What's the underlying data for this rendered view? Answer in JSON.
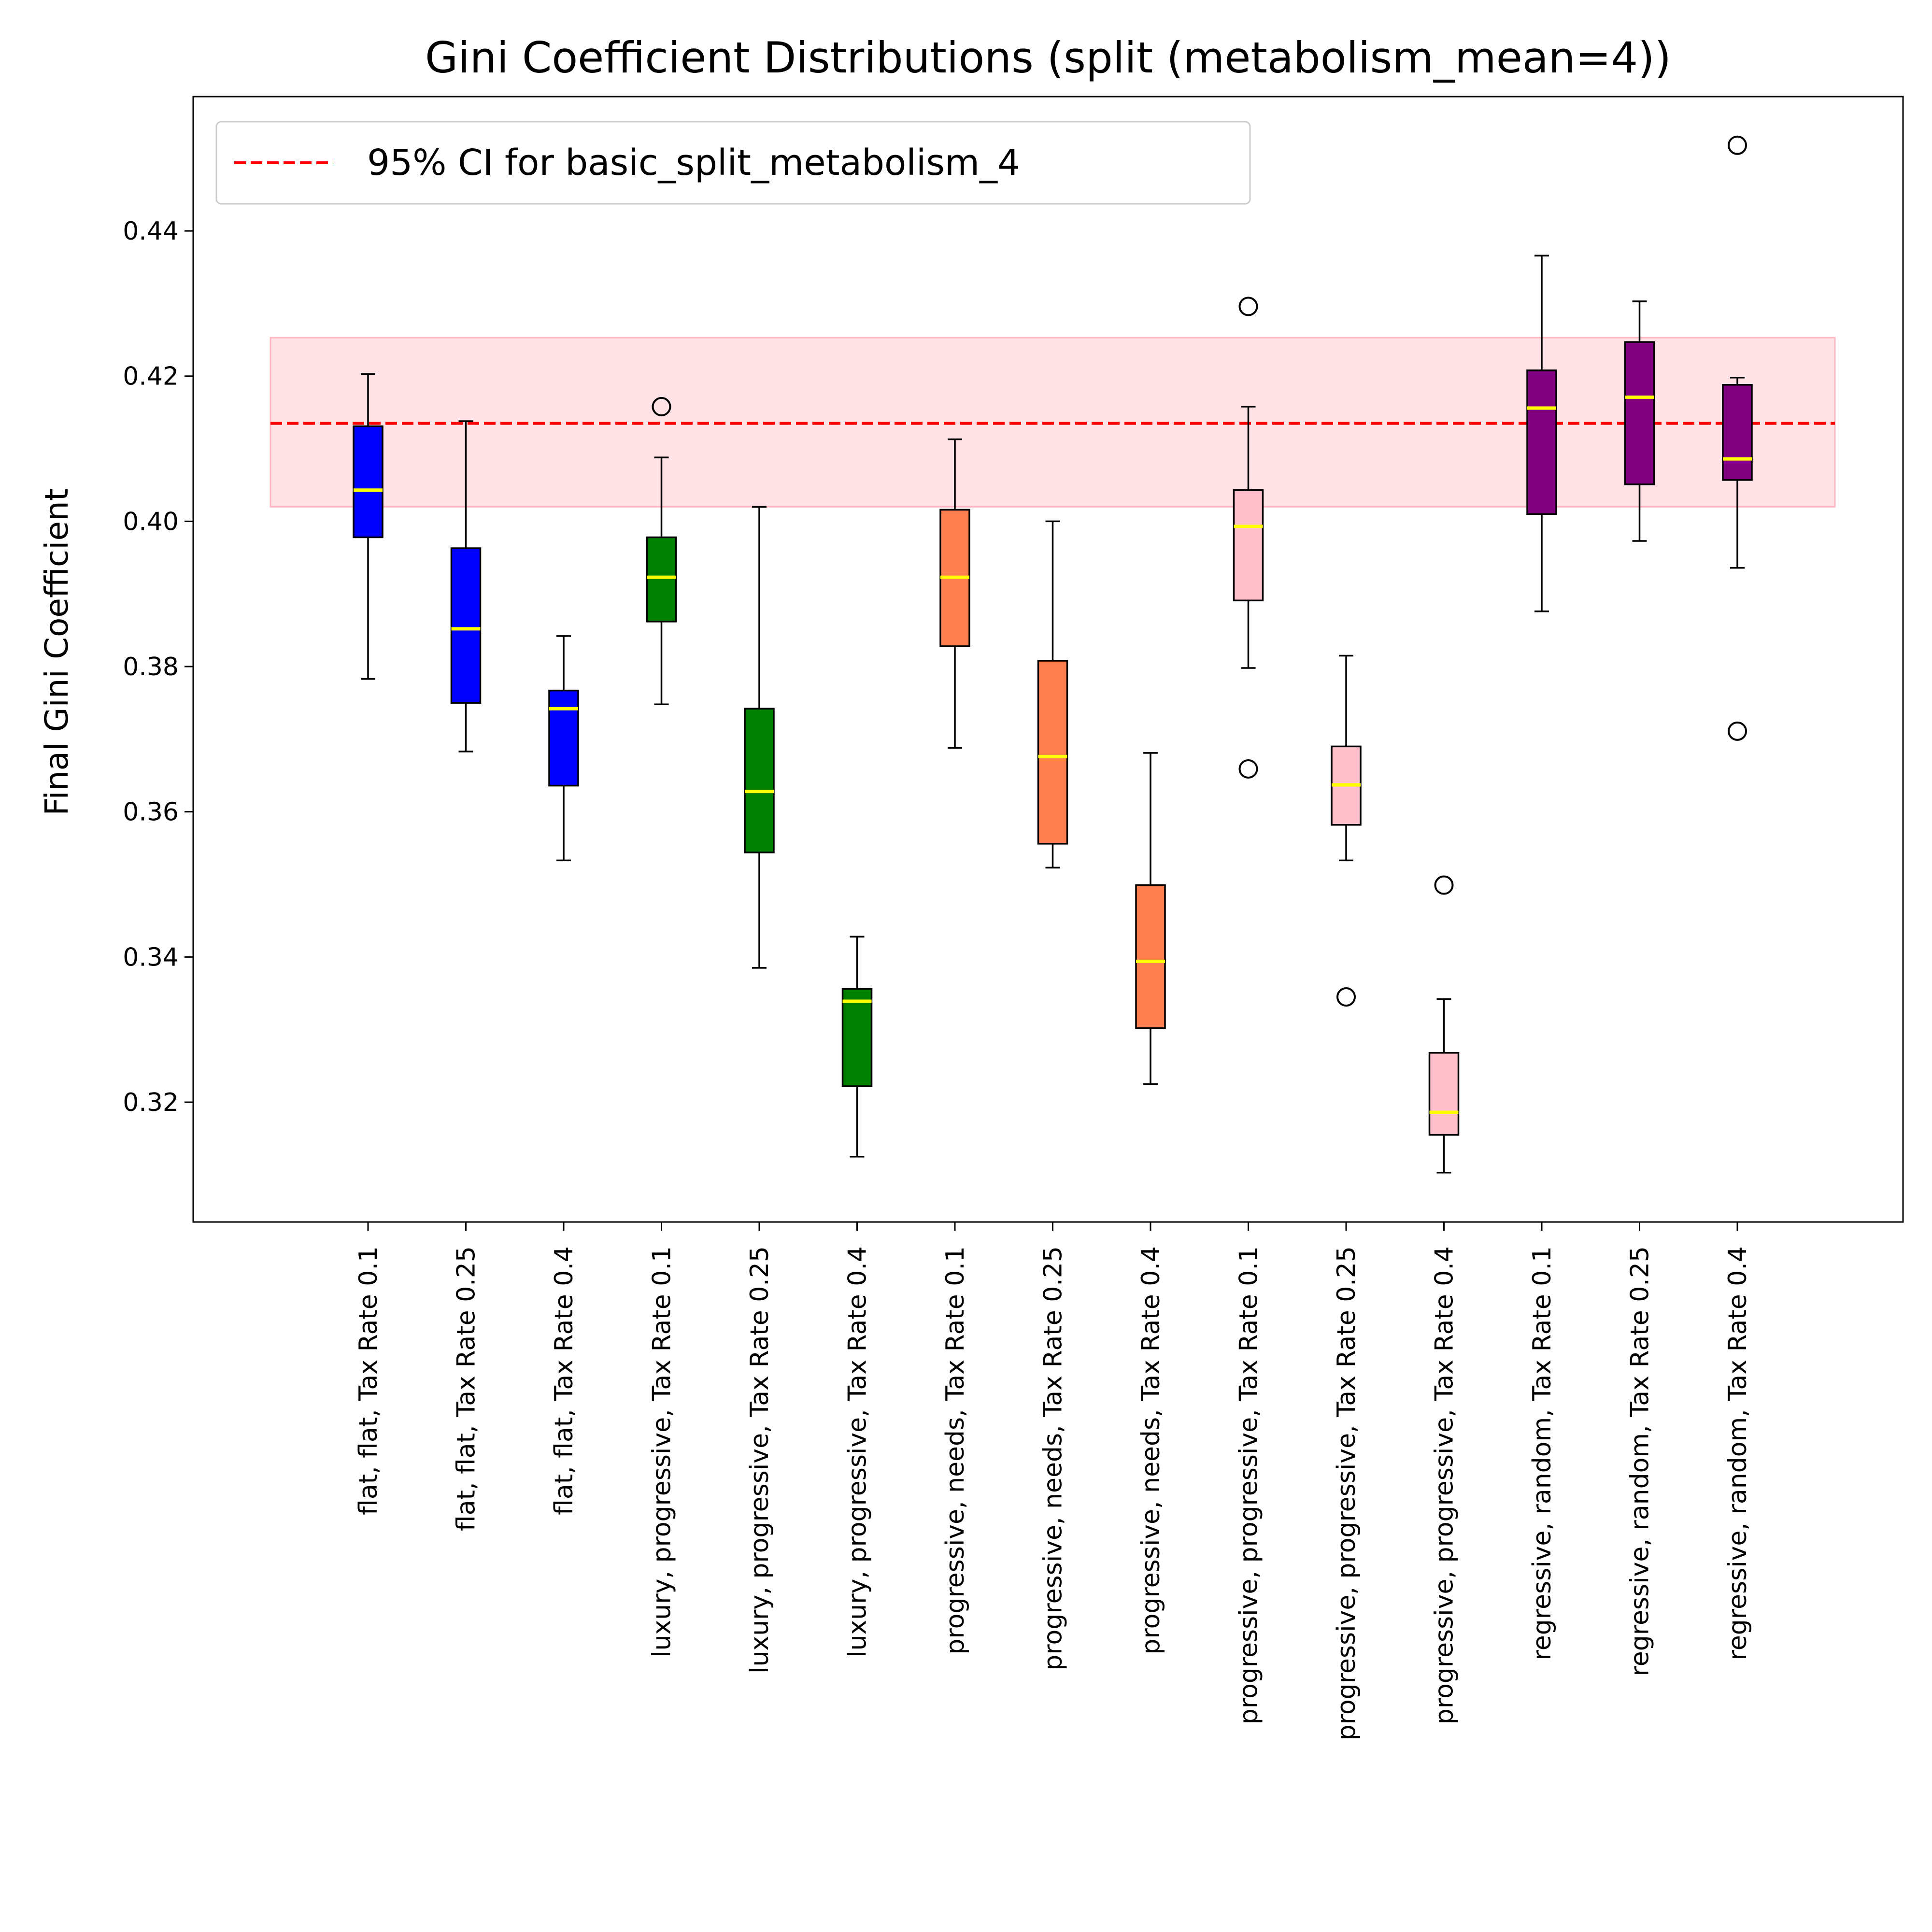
{
  "chart_data": {
    "type": "box",
    "title": "Gini Coefficient Distributions (split (metabolism_mean=4))",
    "xlabel": "",
    "ylabel": "Final Gini Coefficient",
    "ylim": [
      0.3035,
      0.4585
    ],
    "yticks": [
      "0.32",
      "0.34",
      "0.36",
      "0.38",
      "0.40",
      "0.42",
      "0.44"
    ],
    "ytick_values": [
      0.32,
      0.34,
      0.36,
      0.38,
      0.4,
      0.42,
      0.44
    ],
    "reference": {
      "label": "95% CI for basic_split_metabolism_4",
      "line": 0.4135,
      "band": [
        0.402,
        0.4253
      ],
      "line_color": "#ff0000",
      "band_color": "#ffb6c1"
    },
    "legend_position": "upper left",
    "median_color": "#ffff00",
    "boxes": [
      {
        "label": "flat, flat, Tax Rate 0.1",
        "color": "#0000ff",
        "whislo": 0.3783,
        "q1": 0.3978,
        "median": 0.4043,
        "q3": 0.4131,
        "whishi": 0.4203,
        "fliers": []
      },
      {
        "label": "flat, flat, Tax Rate 0.25",
        "color": "#0000ff",
        "whislo": 0.3683,
        "q1": 0.375,
        "median": 0.3852,
        "q3": 0.3963,
        "whishi": 0.4138,
        "fliers": []
      },
      {
        "label": "flat, flat, Tax Rate 0.4",
        "color": "#0000ff",
        "whislo": 0.3533,
        "q1": 0.3636,
        "median": 0.3742,
        "q3": 0.3767,
        "whishi": 0.3842,
        "fliers": []
      },
      {
        "label": "luxury, progressive, Tax Rate 0.1",
        "color": "#008000",
        "whislo": 0.3748,
        "q1": 0.3862,
        "median": 0.3923,
        "q3": 0.3978,
        "whishi": 0.4088,
        "fliers": [
          0.4158
        ]
      },
      {
        "label": "luxury, progressive, Tax Rate 0.25",
        "color": "#008000",
        "whislo": 0.3385,
        "q1": 0.3544,
        "median": 0.3628,
        "q3": 0.3742,
        "whishi": 0.402,
        "fliers": []
      },
      {
        "label": "luxury, progressive, Tax Rate 0.4",
        "color": "#008000",
        "whislo": 0.3125,
        "q1": 0.3222,
        "median": 0.3339,
        "q3": 0.3356,
        "whishi": 0.3428,
        "fliers": []
      },
      {
        "label": "progressive, needs, Tax Rate 0.1",
        "color": "#ff7f50",
        "whislo": 0.3688,
        "q1": 0.3828,
        "median": 0.3923,
        "q3": 0.4016,
        "whishi": 0.4113,
        "fliers": []
      },
      {
        "label": "progressive, needs, Tax Rate 0.25",
        "color": "#ff7f50",
        "whislo": 0.3523,
        "q1": 0.3556,
        "median": 0.3676,
        "q3": 0.3808,
        "whishi": 0.4,
        "fliers": []
      },
      {
        "label": "progressive, needs, Tax Rate 0.4",
        "color": "#ff7f50",
        "whislo": 0.3225,
        "q1": 0.3302,
        "median": 0.3394,
        "q3": 0.3499,
        "whishi": 0.3681,
        "fliers": []
      },
      {
        "label": "progressive, progressive, Tax Rate 0.1",
        "color": "#ffc0cb",
        "whislo": 0.3798,
        "q1": 0.3891,
        "median": 0.3993,
        "q3": 0.4043,
        "whishi": 0.4158,
        "fliers": [
          0.4296,
          0.3659
        ]
      },
      {
        "label": "progressive, progressive, Tax Rate 0.25",
        "color": "#ffc0cb",
        "whislo": 0.3533,
        "q1": 0.3582,
        "median": 0.3637,
        "q3": 0.369,
        "whishi": 0.3815,
        "fliers": [
          0.3345
        ]
      },
      {
        "label": "progressive, progressive, Tax Rate 0.4",
        "color": "#ffc0cb",
        "whislo": 0.3103,
        "q1": 0.3155,
        "median": 0.3186,
        "q3": 0.3268,
        "whishi": 0.3342,
        "fliers": [
          0.3499
        ]
      },
      {
        "label": "regressive, random, Tax Rate 0.1",
        "color": "#800080",
        "whislo": 0.3876,
        "q1": 0.401,
        "median": 0.4156,
        "q3": 0.4208,
        "whishi": 0.4366,
        "fliers": []
      },
      {
        "label": "regressive, random, Tax Rate 0.25",
        "color": "#800080",
        "whislo": 0.3973,
        "q1": 0.4051,
        "median": 0.4171,
        "q3": 0.4247,
        "whishi": 0.4303,
        "fliers": []
      },
      {
        "label": "regressive, random, Tax Rate 0.4",
        "color": "#800080",
        "whislo": 0.3936,
        "q1": 0.4057,
        "median": 0.4086,
        "q3": 0.4188,
        "whishi": 0.4198,
        "fliers": [
          0.4518,
          0.3711
        ]
      }
    ]
  }
}
